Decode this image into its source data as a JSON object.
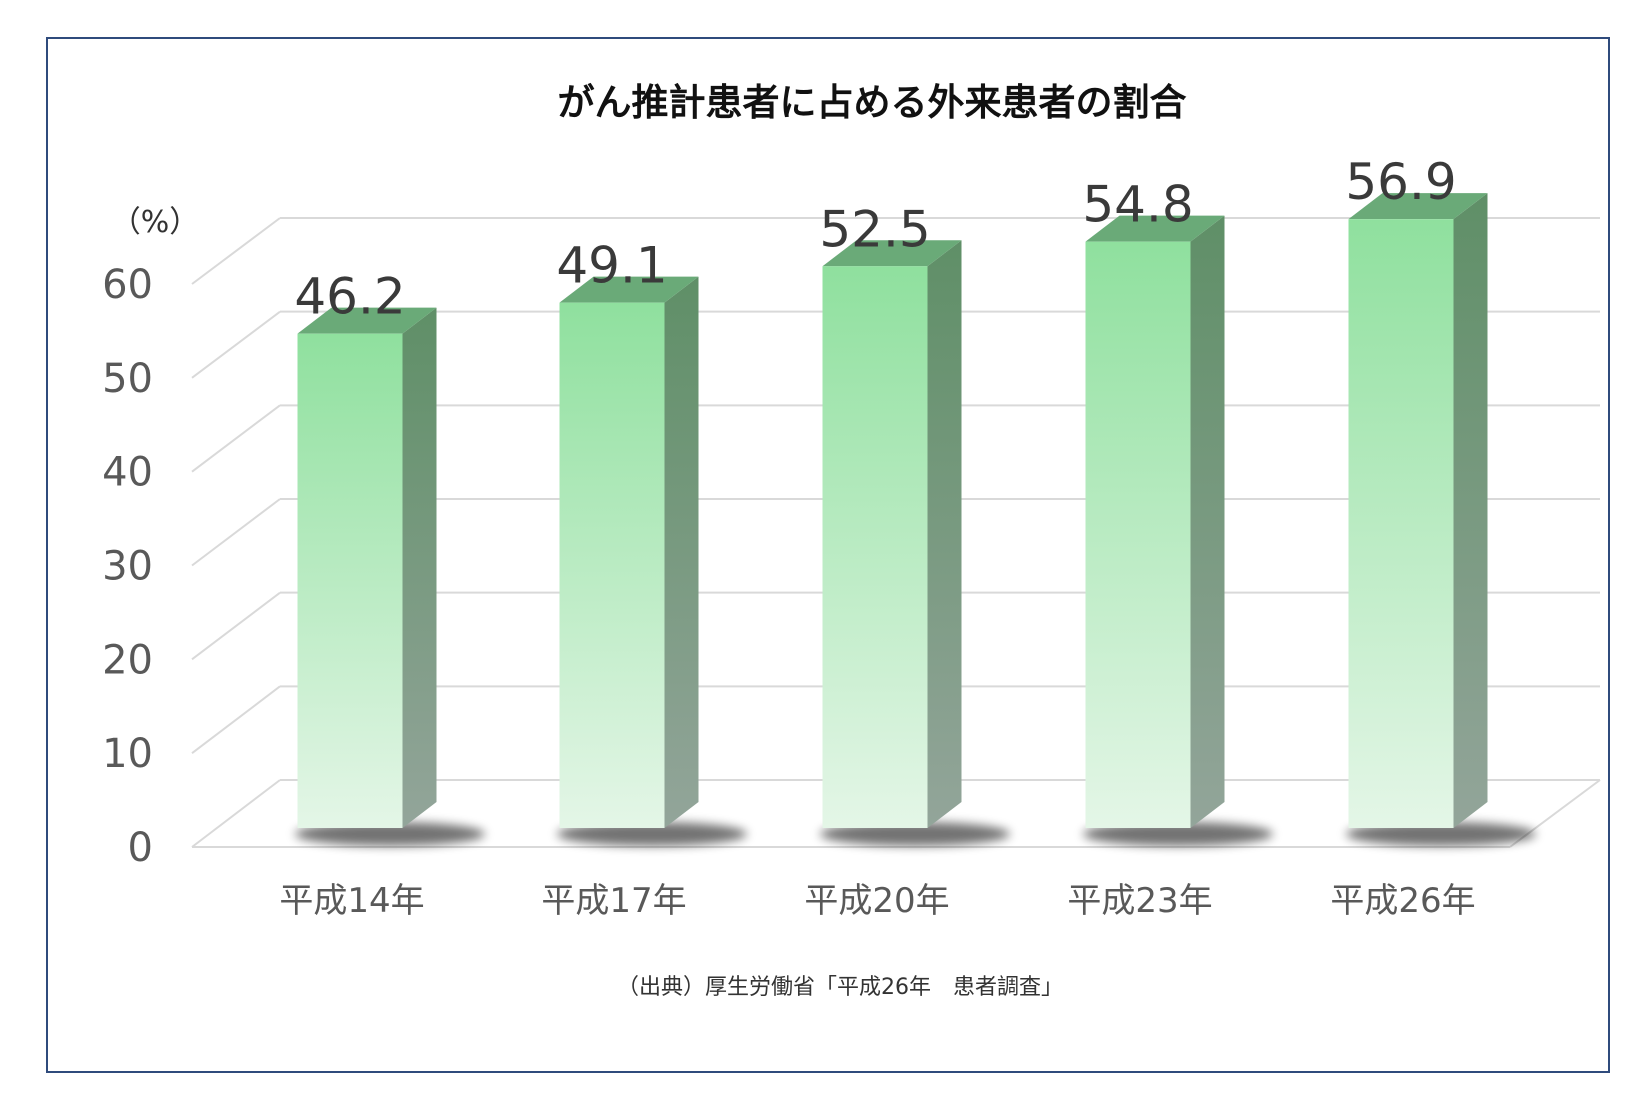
{
  "chart_data": {
    "type": "bar",
    "title": "がん推計患者に占める外来患者の割合",
    "unit_label": "（%）",
    "categories": [
      "平成14年",
      "平成17年",
      "平成20年",
      "平成23年",
      "平成26年"
    ],
    "values": [
      46.2,
      49.1,
      52.5,
      54.8,
      56.9
    ],
    "data_labels": [
      "46.2",
      "49.1",
      "52.5",
      "54.8",
      "56.9"
    ],
    "yticks": [
      "0",
      "10",
      "20",
      "30",
      "40",
      "50",
      "60"
    ],
    "ylim": [
      0,
      60
    ],
    "grid": true,
    "style": "3d-column",
    "colors": {
      "bar_front_top": "#8fe09e",
      "bar_front_bottom": "#e4f6e7",
      "bar_side_top": "#5f8f67",
      "bar_side_bottom": "#93a59a",
      "bar_top": "#6aaa78",
      "frame": "#2f4b7c",
      "grid": "#d9d9d9"
    },
    "source": "（出典）厚生労働省「平成26年　患者調査」"
  }
}
